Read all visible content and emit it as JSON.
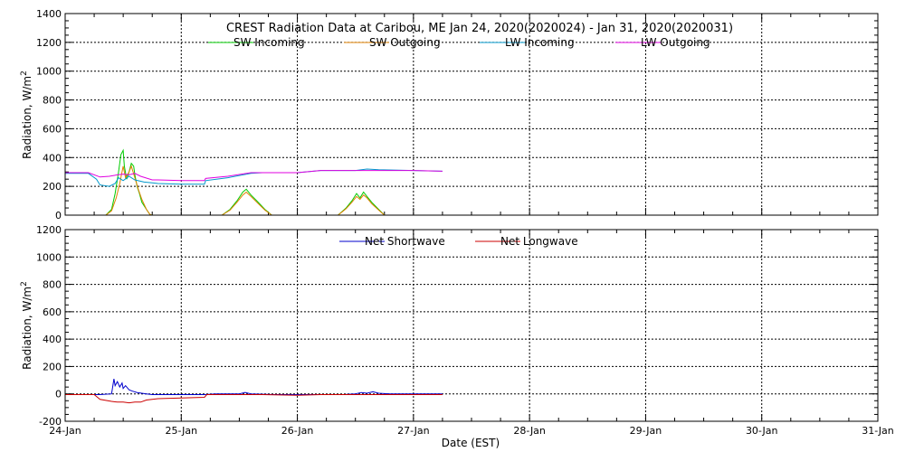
{
  "chart_data": [
    {
      "type": "line",
      "title": "CREST Radiation Data at Caribou, ME   Jan 24, 2020(2020024) - Jan 31, 2020(2020031)",
      "xlabel": "",
      "ylabel": "Radiation, W/m^2",
      "xlim": [
        0,
        7
      ],
      "ylim": [
        0,
        1400
      ],
      "yticks": [
        0,
        200,
        400,
        600,
        800,
        1000,
        1200,
        1400
      ],
      "grid": true,
      "legend_position": "top",
      "series": [
        {
          "name": "SW Incoming",
          "color": "#00cc00",
          "x": [
            0.35,
            0.4,
            0.43,
            0.46,
            0.48,
            0.5,
            0.51,
            0.53,
            0.55,
            0.57,
            0.59,
            0.6,
            0.62,
            0.64,
            0.66,
            0.7,
            0.73,
            0.75,
            1.35,
            1.42,
            1.48,
            1.53,
            1.56,
            1.6,
            1.65,
            1.72,
            1.78,
            2.35,
            2.42,
            2.47,
            2.51,
            2.54,
            2.57,
            2.6,
            2.64,
            2.7,
            2.75
          ],
          "y": [
            0,
            40,
            150,
            300,
            420,
            450,
            340,
            250,
            300,
            360,
            340,
            280,
            200,
            150,
            90,
            40,
            5,
            0,
            0,
            40,
            100,
            160,
            180,
            140,
            100,
            40,
            0,
            0,
            50,
            100,
            150,
            120,
            160,
            130,
            90,
            40,
            0
          ]
        },
        {
          "name": "SW Outgoing",
          "color": "#e08000",
          "x": [
            0.35,
            0.4,
            0.44,
            0.47,
            0.5,
            0.52,
            0.55,
            0.57,
            0.6,
            0.63,
            0.66,
            0.7,
            0.73,
            0.75,
            1.35,
            1.42,
            1.48,
            1.53,
            1.56,
            1.6,
            1.65,
            1.72,
            1.78,
            2.35,
            2.42,
            2.47,
            2.51,
            2.54,
            2.57,
            2.6,
            2.64,
            2.7,
            2.75
          ],
          "y": [
            0,
            30,
            120,
            220,
            340,
            260,
            300,
            340,
            260,
            180,
            110,
            40,
            5,
            0,
            0,
            35,
            90,
            140,
            160,
            130,
            90,
            35,
            0,
            0,
            45,
            90,
            130,
            110,
            140,
            120,
            80,
            35,
            0
          ]
        },
        {
          "name": "LW Incoming",
          "color": "#0099cc",
          "x": [
            0,
            0.2,
            0.27,
            0.3,
            0.38,
            0.43,
            0.46,
            0.5,
            0.55,
            0.6,
            0.68,
            0.75,
            0.8,
            1.0,
            1.1,
            1.2,
            1.21,
            1.4,
            1.6,
            1.7,
            2.0,
            2.2,
            2.5,
            2.6,
            2.7,
            3.0,
            3.25
          ],
          "y": [
            290,
            290,
            250,
            210,
            200,
            220,
            260,
            240,
            270,
            245,
            230,
            225,
            220,
            215,
            215,
            215,
            240,
            260,
            290,
            295,
            295,
            310,
            310,
            320,
            315,
            310,
            305
          ]
        },
        {
          "name": "LW Outgoing",
          "color": "#e000e0",
          "x": [
            0,
            0.2,
            0.3,
            0.38,
            0.45,
            0.5,
            0.55,
            0.6,
            0.65,
            0.75,
            0.8,
            1.0,
            1.2,
            1.21,
            1.4,
            1.6,
            1.7,
            2.0,
            2.2,
            2.5,
            3.0,
            3.25
          ],
          "y": [
            295,
            295,
            265,
            270,
            280,
            285,
            280,
            290,
            270,
            245,
            245,
            240,
            240,
            255,
            270,
            295,
            295,
            295,
            310,
            310,
            310,
            305
          ]
        }
      ]
    },
    {
      "type": "line",
      "title": "",
      "xlabel": "Date (EST)",
      "ylabel": "Radiation, W/m^2",
      "xlim": [
        0,
        7
      ],
      "ylim": [
        -200,
        1200
      ],
      "yticks": [
        -200,
        0,
        200,
        400,
        600,
        800,
        1000,
        1200
      ],
      "categories": [
        "24-Jan",
        "25-Jan",
        "26-Jan",
        "27-Jan",
        "28-Jan",
        "29-Jan",
        "30-Jan",
        "31-Jan"
      ],
      "grid": true,
      "legend_position": "top",
      "series": [
        {
          "name": "Net Shortwave",
          "color": "#0000cc",
          "x": [
            0,
            0.3,
            0.4,
            0.42,
            0.43,
            0.45,
            0.47,
            0.49,
            0.5,
            0.52,
            0.55,
            0.58,
            0.62,
            0.66,
            0.7,
            0.75,
            1.0,
            1.2,
            1.3,
            1.5,
            1.55,
            1.6,
            1.8,
            2.0,
            2.2,
            2.4,
            2.5,
            2.55,
            2.6,
            2.65,
            2.7,
            2.8,
            3.0,
            3.25
          ],
          "y": [
            -5,
            -5,
            0,
            110,
            60,
            90,
            50,
            80,
            40,
            60,
            30,
            20,
            10,
            5,
            0,
            -5,
            -5,
            -5,
            0,
            0,
            10,
            0,
            -5,
            -5,
            -5,
            -5,
            0,
            10,
            5,
            15,
            5,
            0,
            0,
            0
          ]
        },
        {
          "name": "Net Longwave",
          "color": "#cc0000",
          "x": [
            0,
            0.25,
            0.3,
            0.4,
            0.45,
            0.5,
            0.55,
            0.6,
            0.65,
            0.7,
            0.75,
            0.8,
            1.0,
            1.2,
            1.22,
            1.4,
            1.6,
            1.7,
            2.0,
            2.2,
            2.5,
            2.6,
            3.0,
            3.25
          ],
          "y": [
            -5,
            -5,
            -40,
            -55,
            -60,
            -60,
            -65,
            -60,
            -60,
            -45,
            -40,
            -35,
            -30,
            -25,
            -5,
            -5,
            -5,
            -5,
            -10,
            -5,
            -5,
            -5,
            -5,
            -5
          ]
        }
      ]
    }
  ]
}
